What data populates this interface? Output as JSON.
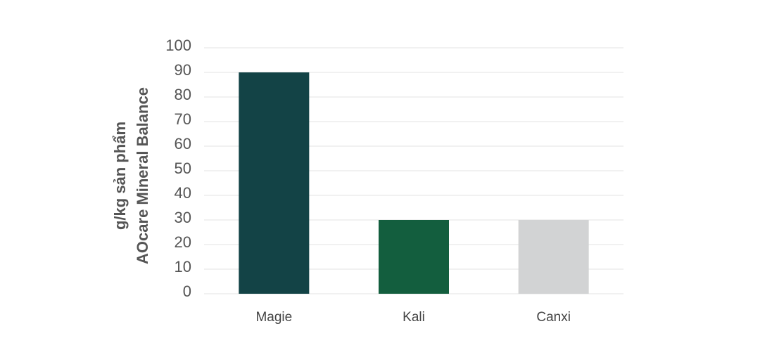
{
  "chart_data": {
    "type": "bar",
    "y_label": [
      "g/kg sản phẩm",
      "AOcare Mineral Balance"
    ],
    "categories": [
      "Magie",
      "Kali",
      "Canxi"
    ],
    "values": [
      90,
      30,
      30
    ],
    "colors": [
      "#134346",
      "#135e3e",
      "#d2d3d4"
    ],
    "ylim": [
      0,
      100
    ],
    "yticks": [
      0,
      10,
      20,
      30,
      40,
      50,
      60,
      70,
      80,
      90,
      100
    ],
    "grid": true
  }
}
